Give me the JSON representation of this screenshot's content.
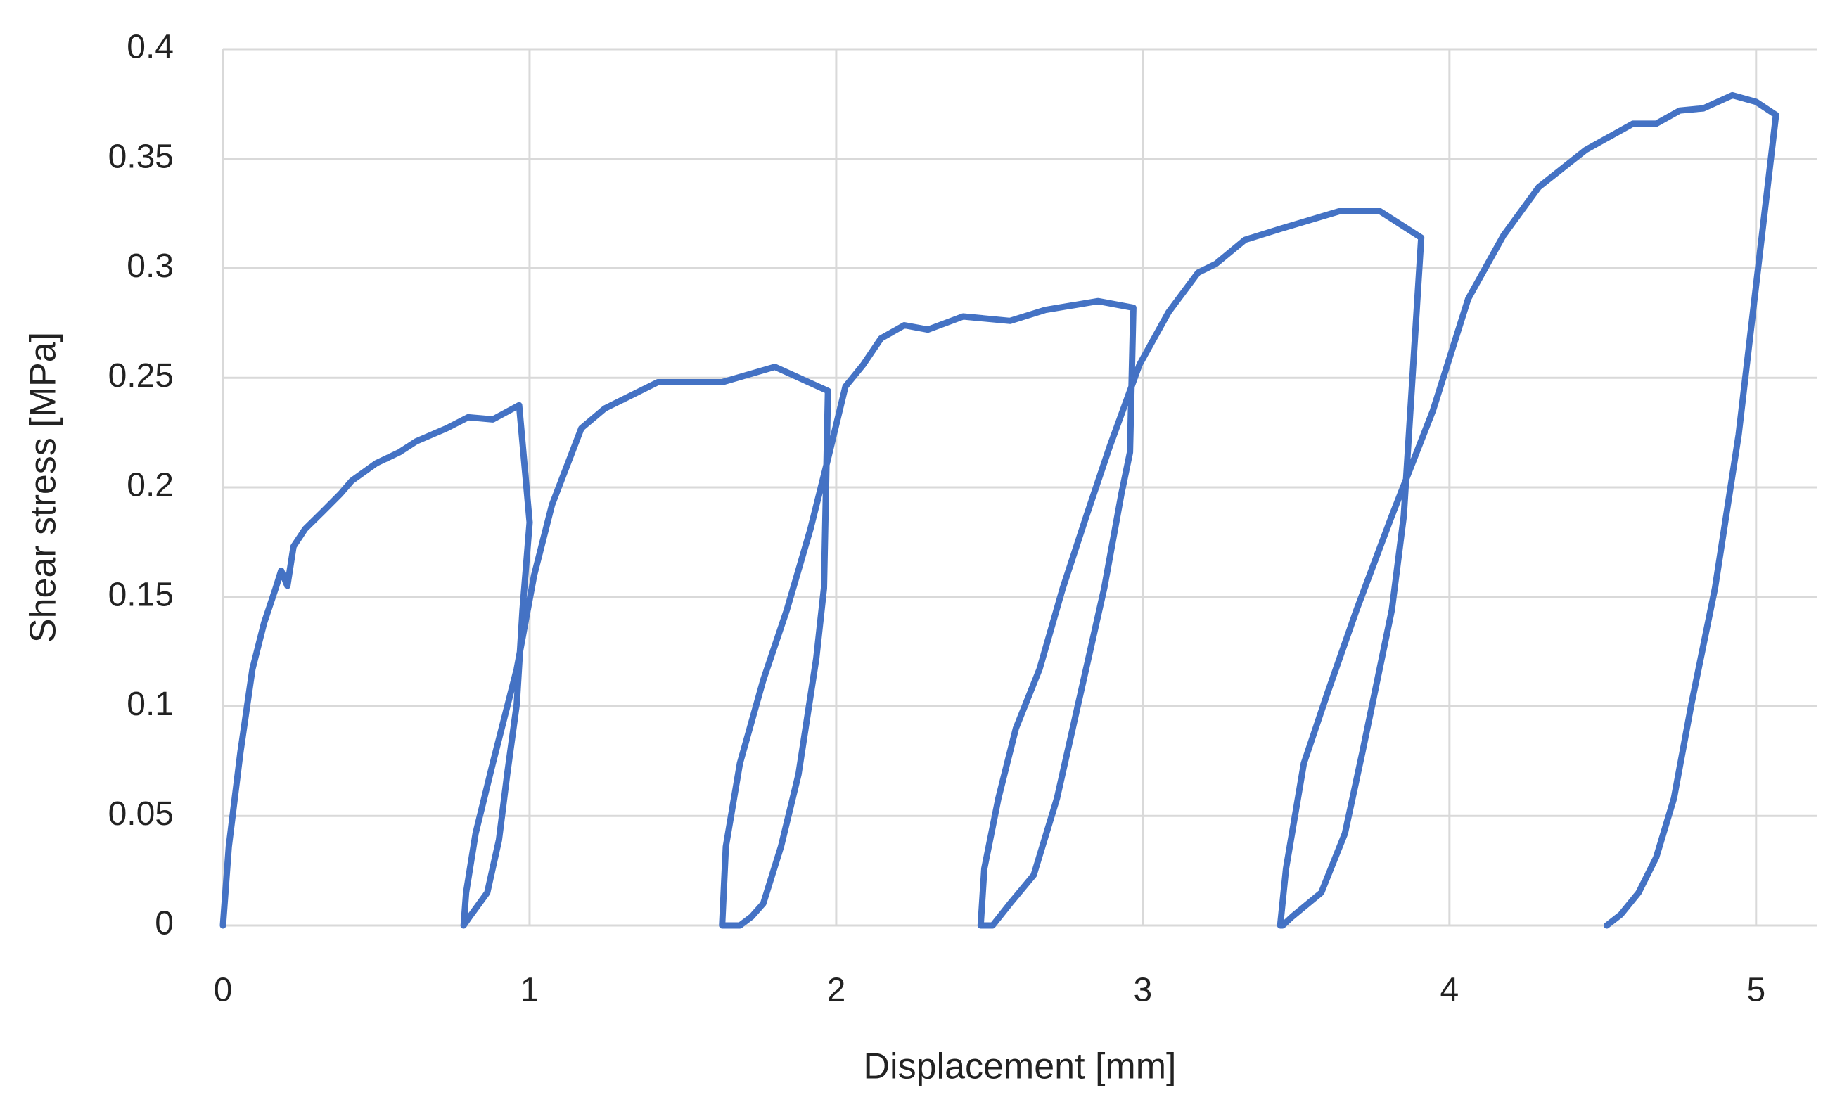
{
  "chart_data": {
    "type": "line",
    "x_label": "Displacement [mm]",
    "y_label": "Shear stress [MPa]",
    "color": "#4472c4",
    "grid": true,
    "xlim": [
      0,
      5.2
    ],
    "ylim": [
      0,
      0.4
    ],
    "xticks": [
      0,
      1,
      2,
      3,
      4,
      5
    ],
    "yticks": [
      0,
      0.05,
      0.1,
      0.15,
      0.2,
      0.25,
      0.3,
      0.35,
      0.4
    ],
    "x": [
      0,
      0.019,
      0.057,
      0.096,
      0.134,
      0.172,
      0.19,
      0.21,
      0.23,
      0.268,
      0.326,
      0.383,
      0.42,
      0.5,
      0.575,
      0.63,
      0.73,
      0.8,
      0.88,
      0.966,
      1.0,
      0.977,
      0.958,
      0.927,
      0.9,
      0.862,
      0.805,
      0.785,
      0.793,
      0.824,
      0.88,
      0.958,
      1.015,
      1.073,
      1.169,
      1.245,
      1.418,
      1.628,
      1.8,
      1.973,
      1.96,
      1.935,
      1.877,
      1.82,
      1.762,
      1.724,
      1.686,
      1.628,
      1.64,
      1.686,
      1.762,
      1.839,
      1.916,
      1.973,
      2.03,
      2.088,
      2.146,
      2.222,
      2.299,
      2.414,
      2.567,
      2.682,
      2.854,
      2.969,
      2.958,
      2.93,
      2.874,
      2.797,
      2.72,
      2.644,
      2.567,
      2.51,
      2.471,
      2.483,
      2.529,
      2.586,
      2.663,
      2.739,
      2.816,
      2.893,
      2.989,
      3.084,
      3.18,
      3.238,
      3.333,
      3.448,
      3.64,
      3.774,
      3.908,
      3.851,
      3.812,
      3.716,
      3.659,
      3.582,
      3.487,
      3.456,
      3.448,
      3.467,
      3.525,
      3.602,
      3.697,
      3.812,
      3.946,
      4.061,
      4.176,
      4.291,
      4.444,
      4.598,
      4.674,
      4.751,
      4.828,
      4.923,
      5.0,
      5.065,
      4.943,
      4.866,
      4.789,
      4.732,
      4.674,
      4.617,
      4.559,
      4.513
    ],
    "values": [
      0,
      0.036,
      0.079,
      0.117,
      0.138,
      0.154,
      0.162,
      0.155,
      0.173,
      0.181,
      0.189,
      0.197,
      0.203,
      0.211,
      0.216,
      0.221,
      0.227,
      0.232,
      0.231,
      0.2375,
      0.184,
      0.144,
      0.101,
      0.069,
      0.039,
      0.015,
      0.004,
      0,
      0.015,
      0.042,
      0.074,
      0.117,
      0.16,
      0.192,
      0.227,
      0.236,
      0.248,
      0.248,
      0.255,
      0.244,
      0.154,
      0.122,
      0.069,
      0.036,
      0.01,
      0.004,
      0,
      0,
      0.036,
      0.074,
      0.112,
      0.144,
      0.181,
      0.213,
      0.246,
      0.256,
      0.268,
      0.274,
      0.272,
      0.278,
      0.276,
      0.281,
      0.285,
      0.282,
      0.216,
      0.197,
      0.154,
      0.106,
      0.058,
      0.023,
      0.01,
      0,
      0,
      0.026,
      0.058,
      0.09,
      0.117,
      0.154,
      0.187,
      0.219,
      0.256,
      0.28,
      0.298,
      0.302,
      0.313,
      0.318,
      0.326,
      0.326,
      0.314,
      0.187,
      0.144,
      0.079,
      0.042,
      0.015,
      0.004,
      0,
      0,
      0.026,
      0.074,
      0.106,
      0.144,
      0.187,
      0.235,
      0.286,
      0.315,
      0.337,
      0.354,
      0.366,
      0.366,
      0.372,
      0.373,
      0.379,
      0.376,
      0.37,
      0.224,
      0.154,
      0.101,
      0.058,
      0.031,
      0.015,
      0.005,
      0
    ]
  }
}
